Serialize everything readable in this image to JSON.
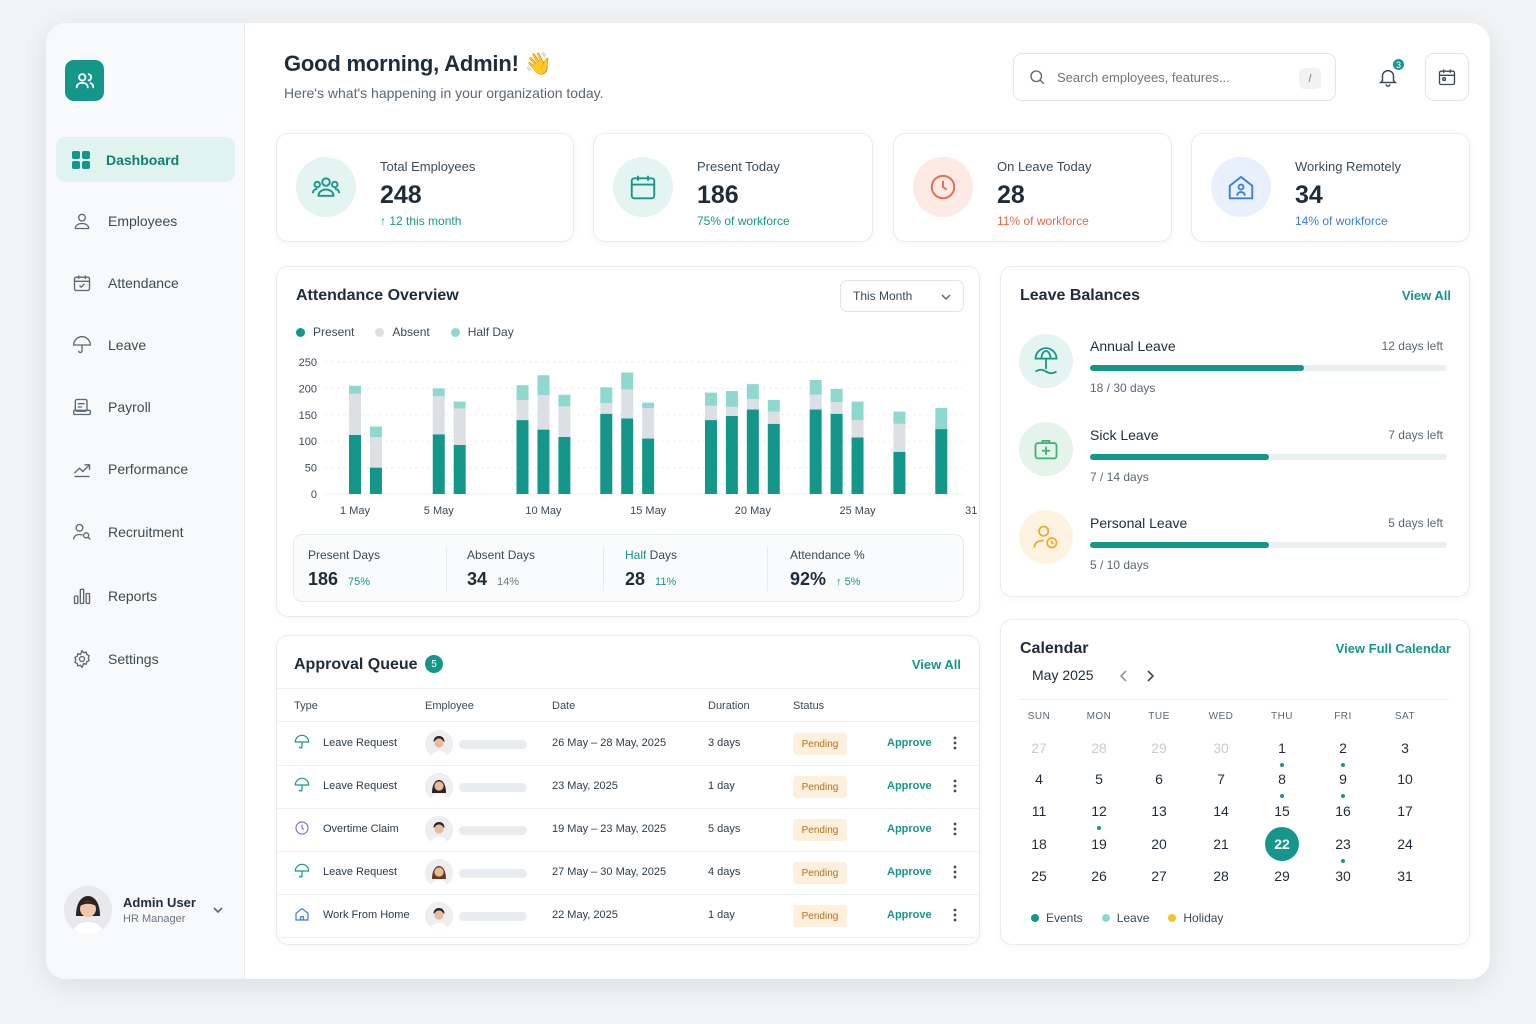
{
  "sidebar": {
    "items": [
      {
        "label": "Dashboard",
        "icon": "grid-icon"
      },
      {
        "label": "Employees",
        "icon": "user-icon"
      },
      {
        "label": "Attendance",
        "icon": "calendar-check-icon"
      },
      {
        "label": "Leave",
        "icon": "umbrella-icon"
      },
      {
        "label": "Payroll",
        "icon": "payroll-icon"
      },
      {
        "label": "Performance",
        "icon": "trend-icon"
      },
      {
        "label": "Recruitment",
        "icon": "user-search-icon"
      },
      {
        "label": "Reports",
        "icon": "bar-chart-icon"
      },
      {
        "label": "Settings",
        "icon": "gear-icon"
      }
    ],
    "user": {
      "name": "Admin User",
      "role": "HR Manager"
    }
  },
  "header": {
    "greeting": "Good morning, Admin! 👋",
    "subtitle": "Here's what's happening in your organization today.",
    "search_placeholder": "Search employees, features...",
    "search_shortcut": "/",
    "notification_count": "3"
  },
  "stats": [
    {
      "label": "Total Employees",
      "value": "248",
      "sub": "↑ 12 this month",
      "color": "#14978a"
    },
    {
      "label": "Present Today",
      "value": "186",
      "sub": "75% of workforce",
      "color": "#14978a"
    },
    {
      "label": "On Leave Today",
      "value": "28",
      "sub": "11% of workforce",
      "color": "#e8684a"
    },
    {
      "label": "Working Remotely",
      "value": "34",
      "sub": "14% of workforce",
      "color": "#3b7fd9"
    }
  ],
  "attendance": {
    "title": "Attendance Overview",
    "period": "This Month",
    "summary": [
      {
        "label": "Present Days",
        "value": "186",
        "pct": "75%"
      },
      {
        "label": "Absent Days",
        "value": "34",
        "pct": "14%"
      },
      {
        "label_accent": "Half",
        "label_rest": " Days",
        "value": "28",
        "pct": "11%"
      },
      {
        "label": "Attendance %",
        "value": "92%",
        "pct": "↑ 5%"
      }
    ]
  },
  "chart_data": {
    "type": "bar",
    "stacked": true,
    "series_names": [
      "Present",
      "Absent",
      "Half Day"
    ],
    "colors": {
      "Present": "#14978a",
      "Absent": "#dcdfe3",
      "Half Day": "#8fd8cf"
    },
    "yticks": [
      "250",
      "200",
      "150",
      "100",
      "50",
      "0"
    ],
    "ylim": [
      0,
      250
    ],
    "xtick_labels": [
      "1 May",
      "5 May",
      "10 May",
      "15 May",
      "20 May",
      "25 May",
      "31 May"
    ],
    "days": [
      1,
      2,
      5,
      6,
      9,
      10,
      11,
      13,
      14,
      15,
      18,
      19,
      20,
      21,
      23,
      24,
      25,
      27,
      29
    ],
    "series": [
      {
        "name": "Present",
        "values": [
          112,
          50,
          113,
          93,
          140,
          122,
          108,
          152,
          143,
          105,
          140,
          148,
          160,
          133,
          160,
          152,
          107,
          80,
          123
        ]
      },
      {
        "name": "Absent",
        "values": [
          78,
          58,
          72,
          69,
          38,
          65,
          58,
          20,
          55,
          58,
          27,
          17,
          20,
          23,
          28,
          22,
          33,
          53,
          0
        ]
      },
      {
        "name": "Half Day",
        "values": [
          15,
          20,
          15,
          13,
          28,
          38,
          22,
          30,
          32,
          10,
          25,
          30,
          28,
          22,
          28,
          25,
          35,
          23,
          40
        ]
      }
    ]
  },
  "leave_balances": {
    "title": "Leave Balances",
    "view_all": "View All",
    "items": [
      {
        "name": "Annual Leave",
        "left": "12 days left",
        "days": "18 / 30 days",
        "used": 18,
        "total": 30,
        "color": "#14978a",
        "icon": "umbrella-beach-icon"
      },
      {
        "name": "Sick Leave",
        "left": "7 days left",
        "days": "7 / 14 days",
        "used": 7,
        "total": 14,
        "color": "#3bb273",
        "icon": "first-aid-kit-icon"
      },
      {
        "name": "Personal Leave",
        "left": "5 days left",
        "days": "5 / 10 days",
        "used": 5,
        "total": 10,
        "color": "#f1a82c",
        "icon": "person-icon"
      }
    ]
  },
  "approvals": {
    "title": "Approval Queue",
    "count": "5",
    "view_all": "View All",
    "columns": [
      "Type",
      "Employee",
      "Date",
      "Duration",
      "Status"
    ],
    "rows": [
      {
        "type": "Leave Request",
        "date": "26 May – 28 May, 2025",
        "duration": "3 days",
        "status": "Pending",
        "action": "Approve",
        "icon": "umbrella-icon"
      },
      {
        "type": "Leave Request",
        "date": "23 May, 2025",
        "duration": "1 day",
        "status": "Pending",
        "action": "Approve",
        "icon": "umbrella-icon"
      },
      {
        "type": "Overtime Claim",
        "date": "19 May – 23 May, 2025",
        "duration": "5 days",
        "status": "Pending",
        "action": "Approve",
        "icon": "clock-icon"
      },
      {
        "type": "Leave Request",
        "date": "27 May – 30 May, 2025",
        "duration": "4 days",
        "status": "Pending",
        "action": "Approve",
        "icon": "umbrella-icon"
      },
      {
        "type": "Work From Home",
        "date": "22 May, 2025",
        "duration": "1 day",
        "status": "Pending",
        "action": "Approve",
        "icon": "home-icon"
      }
    ]
  },
  "calendar": {
    "title": "Calendar",
    "view_full": "View Full Calendar",
    "month": "May 2025",
    "dow": [
      "SUN",
      "MON",
      "TUE",
      "WED",
      "THU",
      "FRI",
      "SAT"
    ],
    "weeks": [
      [
        "27",
        "28",
        "29",
        "30",
        "1",
        "2",
        "3"
      ],
      [
        "4",
        "5",
        "6",
        "7",
        "8",
        "9",
        "10"
      ],
      [
        "11",
        "12",
        "13",
        "14",
        "15",
        "16",
        "17"
      ],
      [
        "18",
        "19",
        "20",
        "21",
        "22",
        "23",
        "24"
      ],
      [
        "25",
        "26",
        "27",
        "28",
        "29",
        "30",
        "31"
      ]
    ],
    "muted_first_week": 4,
    "today": "22",
    "event_days": [
      "1",
      "2",
      "8",
      "9",
      "12",
      "23"
    ],
    "legend": [
      {
        "label": "Events",
        "color": "#14978a"
      },
      {
        "label": "Leave",
        "color": "#8fd8cf"
      },
      {
        "label": "Holiday",
        "color": "#f1c232"
      }
    ]
  }
}
